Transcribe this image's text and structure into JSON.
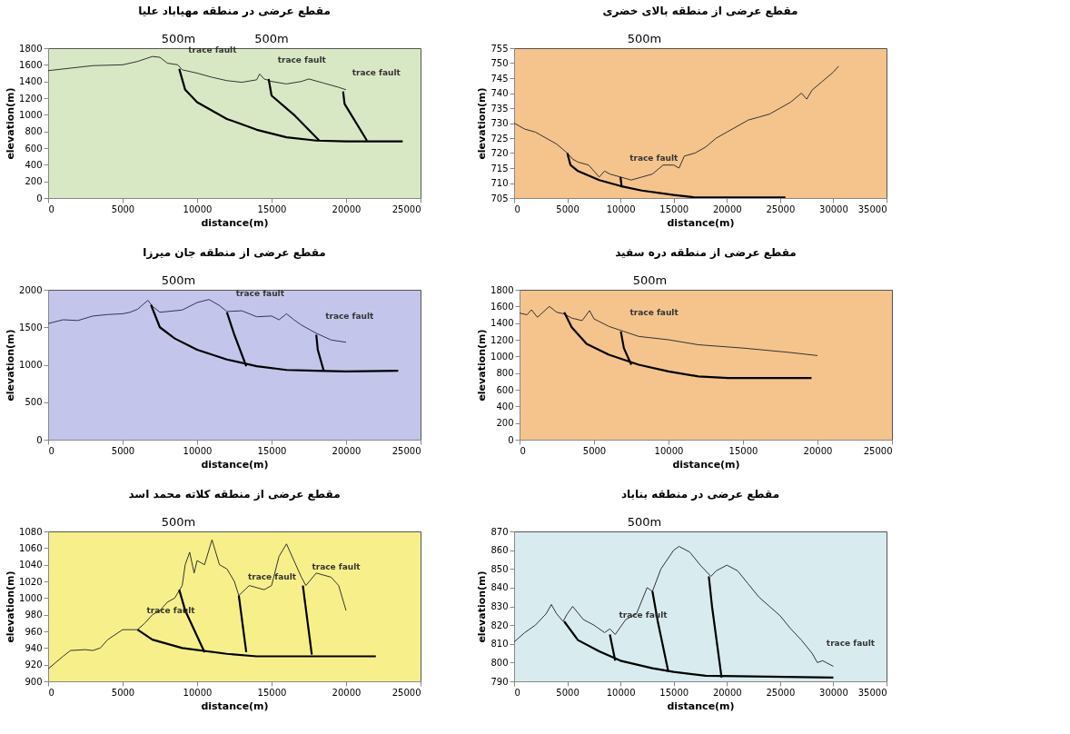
{
  "chart_data": [
    {
      "type": "line",
      "title": "مقطع عرضی در منطقه مهیاباد علیا",
      "xlabel": "distance(m)",
      "ylabel": "elevation(m)",
      "xlim": [
        0,
        25000
      ],
      "xticks": [
        0,
        5000,
        10000,
        15000,
        20000,
        25000
      ],
      "ylim": [
        0,
        1800
      ],
      "yticks": [
        0,
        200,
        400,
        600,
        800,
        1000,
        1200,
        1400,
        1600,
        1800
      ],
      "series": [
        {
          "color": "#333333",
          "x": [
            0,
            2000,
            3000,
            5000,
            6000,
            7000,
            7500,
            8000,
            8700,
            9000,
            10000,
            11000,
            12000,
            13000,
            14000,
            14200,
            14500,
            15000,
            16000,
            17000,
            17500,
            18500,
            19500,
            20000
          ],
          "values": [
            1530,
            1570,
            1590,
            1600,
            1640,
            1700,
            1690,
            1620,
            1600,
            1540,
            1500,
            1450,
            1410,
            1390,
            1420,
            1490,
            1430,
            1400,
            1370,
            1400,
            1430,
            1380,
            1330,
            1300
          ]
        },
        {
          "color": "#000000",
          "x": [
            8800,
            9200,
            10000,
            12000,
            14000,
            16000,
            18000,
            20000,
            23800
          ],
          "values": [
            1550,
            1300,
            1150,
            950,
            820,
            730,
            690,
            680,
            680
          ]
        },
        {
          "color": "#000000",
          "x": [
            14800,
            15000,
            16500,
            18200
          ],
          "values": [
            1430,
            1230,
            1000,
            690
          ]
        },
        {
          "color": "#000000",
          "x": [
            19800,
            19900,
            21400
          ],
          "values": [
            1280,
            1130,
            690
          ]
        }
      ],
      "annotations": [
        "500m",
        "500m",
        {
          "text": "trace fault",
          "x": 8800,
          "y": 1550
        },
        {
          "text": "trace fault",
          "x": 14800,
          "y": 1430
        },
        {
          "text": "trace fault",
          "x": 19800,
          "y": 1280
        }
      ]
    },
    {
      "type": "line",
      "title": "مقطع عرضی از منطقه بالای خضری",
      "xlabel": "distance(m)",
      "ylabel": "elevation(m)",
      "xlim": [
        0,
        35000
      ],
      "xticks": [
        0,
        5000,
        10000,
        15000,
        20000,
        25000,
        30000,
        35000
      ],
      "ylim": [
        705,
        755
      ],
      "yticks": [
        705,
        710,
        715,
        720,
        725,
        730,
        735,
        740,
        745,
        750,
        755
      ],
      "series": [
        {
          "color": "#333333",
          "x": [
            0,
            1000,
            2000,
            3000,
            4000,
            5000,
            5500,
            6000,
            7000,
            8000,
            8500,
            9000,
            10000,
            11000,
            12000,
            13000,
            14000,
            15000,
            15500,
            16000,
            17000,
            18000,
            19000,
            20000,
            21000,
            22000,
            23000,
            24000,
            25000,
            26000,
            27000,
            27500,
            28000,
            29000,
            30000,
            30500
          ],
          "values": [
            730,
            728,
            727,
            725,
            723,
            720,
            718,
            717,
            716,
            712,
            714,
            713,
            712,
            711,
            712,
            713,
            716,
            716,
            715,
            719,
            720,
            722,
            725,
            727,
            729,
            731,
            732,
            733,
            735,
            737,
            740,
            738,
            741,
            744,
            747,
            749
          ]
        },
        {
          "color": "#000000",
          "x": [
            5000,
            5300,
            6000,
            8000,
            10000,
            12000,
            15000,
            17000,
            25500
          ],
          "values": [
            720,
            716,
            714,
            711,
            709,
            707.5,
            706,
            705.2,
            705.2
          ]
        },
        {
          "color": "#000000",
          "x": [
            10000,
            10100
          ],
          "values": [
            712,
            709
          ]
        }
      ],
      "annotations": [
        "500m",
        {
          "text": "trace fault",
          "x": 10000,
          "y": 712
        }
      ]
    },
    {
      "type": "line",
      "title": "مقطع عرضی از منطقه جان میرزا",
      "xlabel": "distance(m)",
      "ylabel": "elevation(m)",
      "xlim": [
        0,
        25000
      ],
      "xticks": [
        0,
        5000,
        10000,
        15000,
        20000,
        25000
      ],
      "ylim": [
        0,
        2000
      ],
      "yticks": [
        0,
        500,
        1000,
        1500,
        2000
      ],
      "series": [
        {
          "color": "#333366",
          "x": [
            0,
            1000,
            2000,
            3000,
            4000,
            5000,
            5500,
            6000,
            6700,
            7000,
            7500,
            9000,
            10000,
            10800,
            11500,
            12000,
            13000,
            14000,
            15000,
            15500,
            16000,
            16500,
            17000,
            18000,
            19000,
            20000
          ],
          "values": [
            1550,
            1600,
            1590,
            1650,
            1670,
            1680,
            1700,
            1740,
            1860,
            1780,
            1700,
            1730,
            1830,
            1870,
            1790,
            1710,
            1720,
            1640,
            1650,
            1600,
            1680,
            1600,
            1530,
            1420,
            1330,
            1300
          ]
        },
        {
          "color": "#000000",
          "x": [
            6900,
            7500,
            8500,
            10000,
            12000,
            14000,
            16000,
            18000,
            20000,
            23500
          ],
          "values": [
            1800,
            1500,
            1350,
            1200,
            1070,
            980,
            930,
            920,
            910,
            920
          ]
        },
        {
          "color": "#000000",
          "x": [
            12000,
            12500,
            13300
          ],
          "values": [
            1700,
            1400,
            980
          ]
        },
        {
          "color": "#000000",
          "x": [
            18000,
            18100,
            18500
          ],
          "values": [
            1400,
            1200,
            920
          ]
        }
      ],
      "annotations": [
        "500m",
        {
          "text": "trace fault",
          "x": 12000,
          "y": 1700
        },
        {
          "text": "trace fault",
          "x": 18000,
          "y": 1400
        }
      ]
    },
    {
      "type": "line",
      "title": "مقطع عرضی از منطقه دره سفید",
      "xlabel": "distance(m)",
      "ylabel": "elevation(m)",
      "xlim": [
        0,
        25000
      ],
      "xticks": [
        0,
        5000,
        10000,
        15000,
        20000,
        25000
      ],
      "ylim": [
        0,
        1800
      ],
      "yticks": [
        0,
        200,
        400,
        600,
        800,
        1000,
        1200,
        1400,
        1600,
        1800
      ],
      "series": [
        {
          "color": "#333333",
          "x": [
            0,
            500,
            800,
            1200,
            2000,
            2500,
            3000,
            3500,
            4200,
            4700,
            5000,
            6000,
            7000,
            8000,
            10000,
            12000,
            15000,
            18000,
            20000
          ],
          "values": [
            1520,
            1500,
            1560,
            1470,
            1600,
            1530,
            1510,
            1460,
            1430,
            1550,
            1450,
            1360,
            1300,
            1240,
            1200,
            1140,
            1100,
            1050,
            1010
          ]
        },
        {
          "color": "#000000",
          "x": [
            3000,
            3500,
            4500,
            6000,
            8000,
            10000,
            12000,
            14000,
            19600
          ],
          "values": [
            1530,
            1350,
            1150,
            1020,
            900,
            820,
            760,
            740,
            740
          ]
        },
        {
          "color": "#000000",
          "x": [
            6800,
            7000,
            7500
          ],
          "values": [
            1300,
            1100,
            900
          ]
        }
      ],
      "annotations": [
        "500m",
        {
          "text": "trace fault",
          "x": 6800,
          "y": 1300
        }
      ]
    },
    {
      "type": "line",
      "title": "مقطع عرضی از منطقه کلاته محمد اسد",
      "xlabel": "distance(m)",
      "ylabel": "elevation(m)",
      "xlim": [
        0,
        25000
      ],
      "xticks": [
        0,
        5000,
        10000,
        15000,
        20000,
        25000
      ],
      "ylim": [
        900,
        1080
      ],
      "yticks": [
        900,
        920,
        940,
        960,
        980,
        1000,
        1020,
        1040,
        1060,
        1080
      ],
      "series": [
        {
          "color": "#333333",
          "x": [
            0,
            1000,
            1500,
            2500,
            3000,
            3500,
            4000,
            5000,
            6000,
            6500,
            7000,
            7500,
            8000,
            8500,
            9000,
            9200,
            9500,
            9800,
            10000,
            10500,
            11000,
            11500,
            12000,
            12500,
            12800,
            13500,
            14500,
            15000,
            15500,
            16000,
            16500,
            17000,
            17300,
            18000,
            19000,
            19500,
            20000
          ],
          "values": [
            915,
            930,
            937,
            938,
            937,
            940,
            950,
            962,
            962,
            970,
            980,
            985,
            995,
            1000,
            1015,
            1040,
            1055,
            1030,
            1045,
            1040,
            1070,
            1040,
            1035,
            1020,
            1003,
            1015,
            1010,
            1015,
            1050,
            1065,
            1045,
            1025,
            1015,
            1030,
            1025,
            1015,
            985
          ]
        },
        {
          "color": "#000000",
          "x": [
            6000,
            7000,
            9000,
            12000,
            14000,
            22000
          ],
          "values": [
            962,
            950,
            940,
            933,
            930,
            930
          ]
        },
        {
          "color": "#000000",
          "x": [
            8800,
            9200,
            10500
          ],
          "values": [
            1010,
            985,
            935
          ]
        },
        {
          "color": "#000000",
          "x": [
            12800,
            13300
          ],
          "values": [
            1003,
            935
          ]
        },
        {
          "color": "#000000",
          "x": [
            17100,
            17700
          ],
          "values": [
            1015,
            932
          ]
        }
      ],
      "annotations": [
        "500m",
        {
          "text": "trace fault",
          "x": 6000,
          "y": 962
        },
        {
          "text": "trace fault",
          "x": 12800,
          "y": 1003
        },
        {
          "text": "trace fault",
          "x": 17100,
          "y": 1015
        }
      ]
    },
    {
      "type": "line",
      "title": "مقطع عرضی در منطقه بناباد",
      "xlabel": "distance(m)",
      "ylabel": "elevation(m)",
      "xlim": [
        0,
        35000
      ],
      "xticks": [
        0,
        5000,
        10000,
        15000,
        20000,
        25000,
        30000,
        35000
      ],
      "ylim": [
        790,
        870
      ],
      "yticks": [
        790,
        800,
        810,
        820,
        830,
        840,
        850,
        860,
        870
      ],
      "series": [
        {
          "color": "#333333",
          "x": [
            0,
            1000,
            2000,
            3000,
            3500,
            4000,
            4600,
            5000,
            5500,
            6500,
            7500,
            8500,
            9000,
            9500,
            10500,
            11500,
            12500,
            13000,
            13800,
            15000,
            15500,
            16500,
            17500,
            18500,
            19000,
            20000,
            21000,
            22000,
            23000,
            24000,
            25000,
            26000,
            27000,
            28000,
            28500,
            29000,
            30000
          ],
          "values": [
            811,
            816,
            820,
            826,
            831,
            826,
            822,
            826,
            830,
            823,
            820,
            816,
            818,
            815,
            823,
            826,
            840,
            838,
            850,
            860,
            862,
            859,
            852,
            846,
            849,
            852,
            849,
            842,
            835,
            830,
            825,
            818,
            812,
            805,
            800,
            801,
            798
          ]
        },
        {
          "color": "#000000",
          "x": [
            4700,
            6000,
            8000,
            10000,
            13000,
            15000,
            18000,
            30000
          ],
          "values": [
            822,
            812,
            806,
            801,
            797,
            795,
            793,
            792
          ]
        },
        {
          "color": "#000000",
          "x": [
            9000,
            9500
          ],
          "values": [
            815,
            801
          ]
        },
        {
          "color": "#000000",
          "x": [
            13000,
            13500,
            14500
          ],
          "values": [
            838,
            822,
            795
          ]
        },
        {
          "color": "#000000",
          "x": [
            18300,
            18600,
            19500
          ],
          "values": [
            846,
            830,
            792
          ]
        }
      ],
      "annotations": [
        "500m",
        {
          "text": "trace fault",
          "x": 9000,
          "y": 815
        },
        {
          "text": "trace fault",
          "x": 28500,
          "y": 800
        }
      ]
    }
  ]
}
